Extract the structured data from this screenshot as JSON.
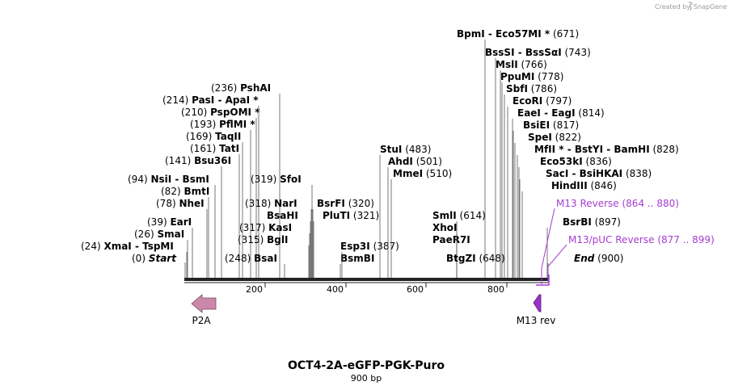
{
  "credit": "Created by",
  "brand": "SnapGene",
  "plasmid": {
    "name": "OCT4-2A-eGFP-PGK-Puro",
    "size": "900 bp"
  },
  "ruler": {
    "ticks": [
      "200",
      "400",
      "600",
      "800"
    ]
  },
  "sites": [
    {
      "id": "xmai",
      "pos": "(24)",
      "names": [
        "XmaI",
        "TspMI"
      ]
    },
    {
      "id": "smai",
      "pos": "(26)",
      "names": [
        "SmaI"
      ]
    },
    {
      "id": "eari",
      "pos": "(39)",
      "names": [
        "EarI"
      ]
    },
    {
      "id": "nhei",
      "pos": "(78)",
      "names": [
        "NheI"
      ]
    },
    {
      "id": "bmti",
      "pos": "(82)",
      "names": [
        "BmtI"
      ]
    },
    {
      "id": "nsii",
      "pos": "(94)",
      "names": [
        "NsiI",
        "BsmI"
      ]
    },
    {
      "id": "bsu36i",
      "pos": "(141)",
      "names": [
        "Bsu36I"
      ]
    },
    {
      "id": "tati",
      "pos": "(161)",
      "names": [
        "TatI"
      ]
    },
    {
      "id": "taqii",
      "pos": "(169)",
      "names": [
        "TaqII"
      ]
    },
    {
      "id": "pflmi",
      "pos": "(193)",
      "names": [
        "PflMI *"
      ]
    },
    {
      "id": "pspomi",
      "pos": "(210)",
      "names": [
        "PspOMI *"
      ]
    },
    {
      "id": "pasi",
      "pos": "(214)",
      "names": [
        "PasI",
        "ApaI *"
      ]
    },
    {
      "id": "pshai",
      "pos": "(236)",
      "names": [
        "PshAI"
      ]
    },
    {
      "id": "bsai",
      "pos": "(248)",
      "names": [
        "BsaI"
      ]
    },
    {
      "id": "bgli",
      "pos": "(315)",
      "names": [
        "BglI"
      ]
    },
    {
      "id": "kasi",
      "pos": "(317)",
      "names": [
        "KasI"
      ]
    },
    {
      "id": "bsahi",
      "pos": "",
      "names": [
        "BsaHI"
      ]
    },
    {
      "id": "nari",
      "pos": "(318)",
      "names": [
        "NarI"
      ]
    },
    {
      "id": "sfoi",
      "pos": "(319)",
      "names": [
        "SfoI"
      ]
    },
    {
      "id": "plui",
      "pos": "(321)",
      "names": [
        "PluTI"
      ]
    },
    {
      "id": "bsrfi",
      "pos": "(320)",
      "names": [
        "BsrFI"
      ]
    },
    {
      "id": "bsmbi",
      "pos": "",
      "names": [
        "BsmBI"
      ]
    },
    {
      "id": "esp3i",
      "pos": "(387)",
      "names": [
        "Esp3I"
      ]
    },
    {
      "id": "stui",
      "pos": "(483)",
      "names": [
        "StuI"
      ]
    },
    {
      "id": "ahdi",
      "pos": "(501)",
      "names": [
        "AhdI"
      ]
    },
    {
      "id": "mmei",
      "pos": "(510)",
      "names": [
        "MmeI"
      ]
    },
    {
      "id": "pae",
      "pos": "",
      "names": [
        "PaeR7I"
      ]
    },
    {
      "id": "xhoi",
      "pos": "",
      "names": [
        "XhoI"
      ]
    },
    {
      "id": "smli",
      "pos": "(614)",
      "names": [
        "SmlI"
      ]
    },
    {
      "id": "btgzi",
      "pos": "(648)",
      "names": [
        "BtgZI"
      ]
    },
    {
      "id": "bpmi",
      "pos": "(671)",
      "names": [
        "BpmI",
        "Eco57MI *"
      ]
    },
    {
      "id": "bsssi",
      "pos": "(743)",
      "names": [
        "BssSI",
        "BssSαI"
      ]
    },
    {
      "id": "msli",
      "pos": "(766)",
      "names": [
        "MslI"
      ]
    },
    {
      "id": "ppumi",
      "pos": "(778)",
      "names": [
        "PpuMI"
      ]
    },
    {
      "id": "sbfi",
      "pos": "(786)",
      "names": [
        "SbfI"
      ]
    },
    {
      "id": "ecori",
      "pos": "(797)",
      "names": [
        "EcoRI"
      ]
    },
    {
      "id": "eaei",
      "pos": "(814)",
      "names": [
        "EaeI",
        "EagI"
      ]
    },
    {
      "id": "bsiei",
      "pos": "(817)",
      "names": [
        "BsiEI"
      ]
    },
    {
      "id": "spei",
      "pos": "(822)",
      "names": [
        "SpeI"
      ]
    },
    {
      "id": "mfli",
      "pos": "(828)",
      "names": [
        "MfII *",
        "BstYI",
        "BamHI"
      ]
    },
    {
      "id": "eco53ki",
      "pos": "(836)",
      "names": [
        "Eco53kI"
      ]
    },
    {
      "id": "saci",
      "pos": "(838)",
      "names": [
        "SacI",
        "BsiHKAI"
      ]
    },
    {
      "id": "hindiii",
      "pos": "(846)",
      "names": [
        "HindIII"
      ]
    },
    {
      "id": "bsrbi",
      "pos": "(897)",
      "names": [
        "BsrBI"
      ]
    }
  ],
  "markers": {
    "start": {
      "pos": "(0)",
      "label": "Start"
    },
    "end": {
      "pos": "(900)",
      "label": "End"
    }
  },
  "primers": [
    {
      "id": "m13-reverse",
      "label": "M13 Reverse",
      "range": "(864 .. 880)"
    },
    {
      "id": "m13-puc-reverse",
      "label": "M13/pUC Reverse",
      "range": "(877 .. 899)"
    }
  ],
  "features": [
    {
      "id": "p2a",
      "label": "P2A",
      "color": "#cc88aa"
    },
    {
      "id": "m13rev",
      "label": "M13 rev",
      "color": "#9933cc"
    }
  ],
  "colors": {
    "primer": "#a63ed0",
    "feature_p2a": "#cc88aa",
    "feature_m13": "#9933cc"
  }
}
